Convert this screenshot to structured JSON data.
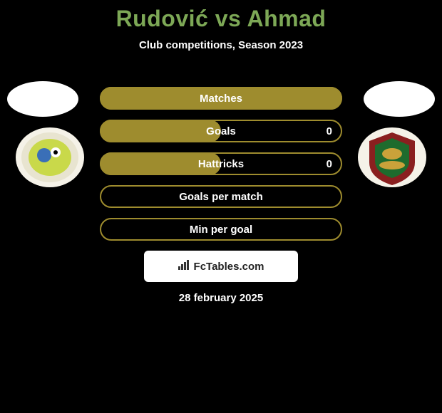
{
  "title": "Rudović vs Ahmad",
  "title_color": "#7da856",
  "subtitle": "Club competitions, Season 2023",
  "bars": [
    {
      "label": "Matches",
      "fill_pct": 100,
      "fill_color": "#9e8c2e",
      "border_color": "#9e8c2e",
      "value": ""
    },
    {
      "label": "Goals",
      "fill_pct": 50,
      "fill_color": "#9e8c2e",
      "border_color": "#9e8c2e",
      "value": "0"
    },
    {
      "label": "Hattricks",
      "fill_pct": 50,
      "fill_color": "#9e8c2e",
      "border_color": "#9e8c2e",
      "value": "0"
    },
    {
      "label": "Goals per match",
      "fill_pct": 0,
      "fill_color": "#9e8c2e",
      "border_color": "#9e8c2e",
      "value": ""
    },
    {
      "label": "Min per goal",
      "fill_pct": 0,
      "fill_color": "#9e8c2e",
      "border_color": "#9e8c2e",
      "value": ""
    }
  ],
  "brand": "FcTables.com",
  "date": "28 february 2025",
  "background_color": "#000000",
  "club_left": {
    "outer": "#f5f2e8",
    "ring": "#e8e4d0",
    "inner": "#c9d94a",
    "accent": "#3a6fb7"
  },
  "club_right": {
    "outer": "#f5f2e8",
    "shield": "#8a1f1f",
    "field": "#1e6b2d",
    "gold": "#caa23a"
  }
}
